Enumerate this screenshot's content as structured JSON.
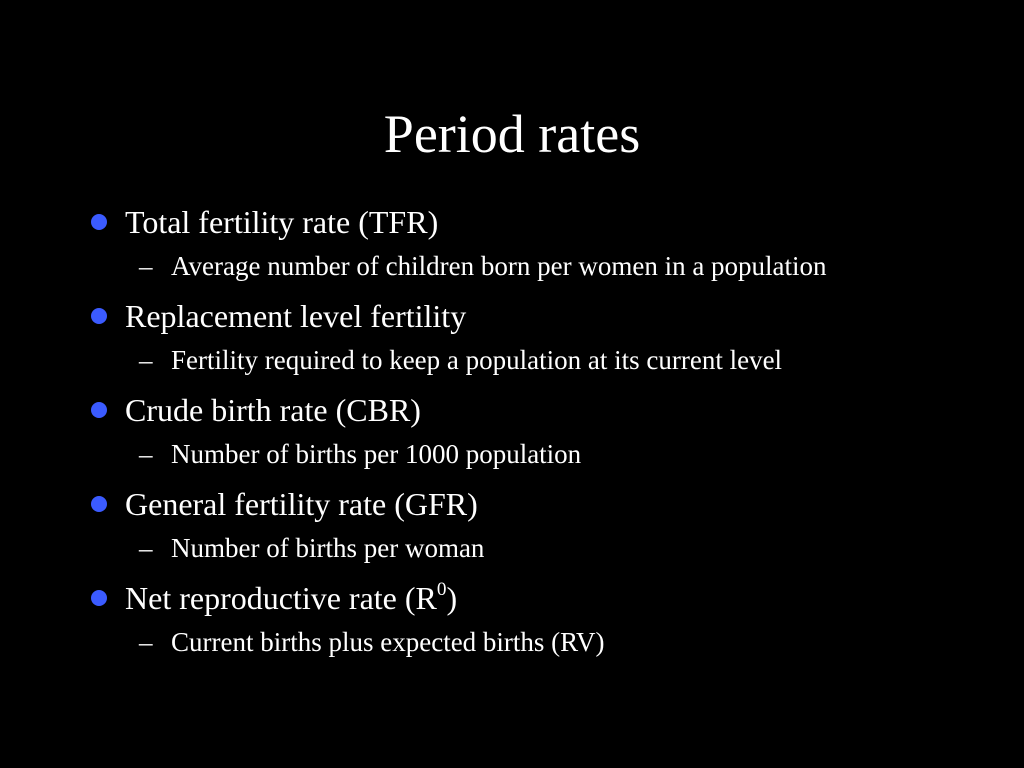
{
  "slide": {
    "title": "Period rates",
    "bullet_color": "#3b5bff",
    "dash_glyph": "–",
    "items": [
      {
        "text": "Total fertility rate (TFR)",
        "sub": "Average number of children born per women in a population"
      },
      {
        "text": "Replacement level fertility",
        "sub": "Fertility required to keep a population at its current level"
      },
      {
        "text": "Crude birth rate (CBR)",
        "sub": "Number of births per 1000 population"
      },
      {
        "text": "General fertility rate (GFR)",
        "sub": "Number of births per woman"
      },
      {
        "text": "Net reproductive rate (R",
        "text_sup": "0",
        "text_after": ")",
        "sub": "Current births plus expected births (RV)"
      }
    ]
  }
}
